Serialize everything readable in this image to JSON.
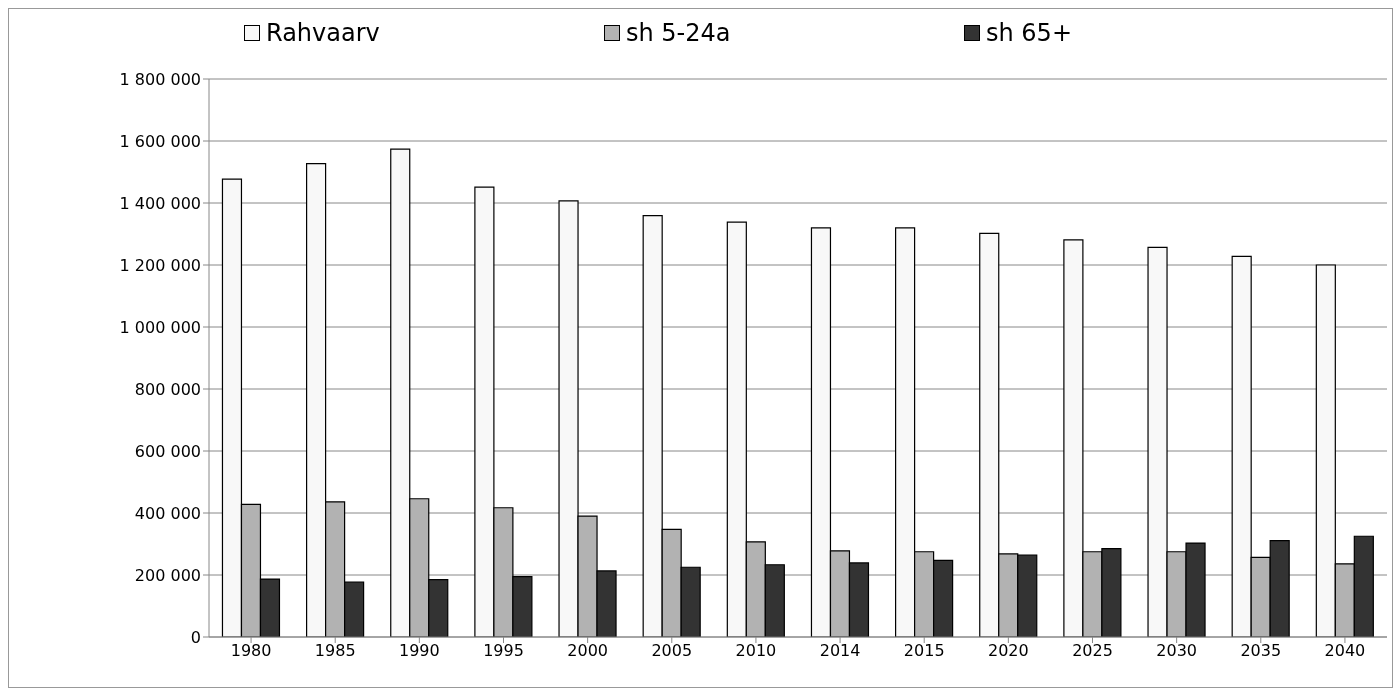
{
  "chart_data": {
    "type": "bar",
    "categories": [
      "1980",
      "1985",
      "1990",
      "1995",
      "2000",
      "2005",
      "2010",
      "2014",
      "2015",
      "2020",
      "2025",
      "2030",
      "2035",
      "2040"
    ],
    "series": [
      {
        "name": "Rahvaarv",
        "color": "#f8f8f8",
        "values": [
          1477000,
          1527000,
          1574000,
          1451000,
          1407000,
          1359000,
          1338000,
          1320000,
          1320000,
          1302000,
          1281000,
          1257000,
          1228000,
          1200000
        ]
      },
      {
        "name": "sh 5-24a",
        "color": "#b2b2b2",
        "values": [
          428000,
          436000,
          446000,
          417000,
          390000,
          347000,
          307000,
          278000,
          275000,
          268000,
          275000,
          275000,
          257000,
          236000
        ]
      },
      {
        "name": "sh 65+",
        "color": "#333333",
        "values": [
          187000,
          177000,
          185000,
          195000,
          213000,
          225000,
          233000,
          239000,
          247000,
          264000,
          285000,
          303000,
          311000,
          325000
        ]
      }
    ],
    "ylim": [
      0,
      1800000
    ],
    "yticks": [
      0,
      {
        "value": 200000,
        "label": "200 000"
      },
      {
        "value": 400000,
        "label": "400 000"
      },
      {
        "value": 600000,
        "label": "600 000"
      },
      {
        "value": 800000,
        "label": "800 000"
      },
      {
        "value": 1000000,
        "label": "1 000 000"
      },
      {
        "value": 1200000,
        "label": "1 200 000"
      },
      {
        "value": 1400000,
        "label": "1 400 000"
      },
      {
        "value": 1600000,
        "label": "1 600 000"
      },
      {
        "value": 1800000,
        "label": "1 800 000"
      }
    ],
    "grid": "y",
    "legend": "top"
  }
}
